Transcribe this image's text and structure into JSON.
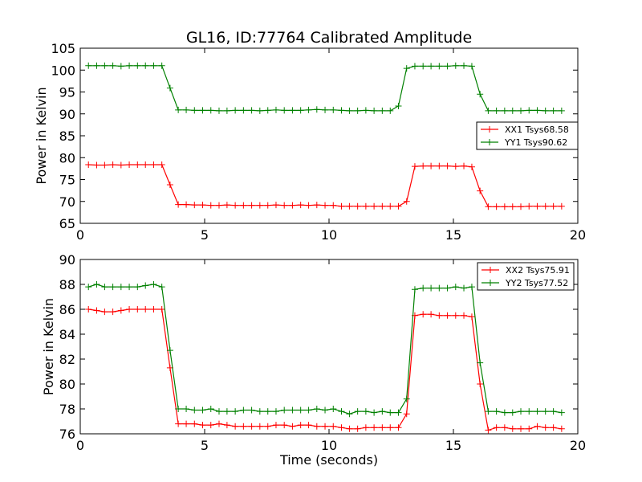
{
  "title": "GL16, ID:77764 Calibrated Amplitude",
  "colors": {
    "xx": "#ff0000",
    "yy": "#008000"
  },
  "chart_data": [
    {
      "type": "line",
      "ylabel": "Power in Kelvin",
      "xlabel": "",
      "xlim": [
        0,
        20
      ],
      "ylim": [
        65,
        105
      ],
      "xticks": [
        "0",
        "5",
        "10",
        "15",
        "20"
      ],
      "yticks": [
        "65",
        "70",
        "75",
        "80",
        "85",
        "90",
        "95",
        "100",
        "105"
      ],
      "legend_position": "center-right",
      "x": [
        0.33,
        0.66,
        0.98,
        1.31,
        1.64,
        1.97,
        2.3,
        2.62,
        2.95,
        3.28,
        3.61,
        3.94,
        4.26,
        4.59,
        4.92,
        5.25,
        5.58,
        5.9,
        6.23,
        6.56,
        6.89,
        7.22,
        7.54,
        7.87,
        8.2,
        8.53,
        8.86,
        9.18,
        9.51,
        9.84,
        10.17,
        10.5,
        10.82,
        11.15,
        11.48,
        11.81,
        12.14,
        12.46,
        12.79,
        13.12,
        13.45,
        13.78,
        14.1,
        14.43,
        14.76,
        15.09,
        15.42,
        15.74,
        16.07,
        16.4,
        16.73,
        17.06,
        17.38,
        17.71,
        18.04,
        18.37,
        18.7,
        19.02,
        19.35
      ],
      "series": [
        {
          "name": "XX1 Tsys68.58",
          "color": "#ff0000",
          "values": [
            78.4,
            78.3,
            78.3,
            78.4,
            78.3,
            78.4,
            78.4,
            78.4,
            78.4,
            78.4,
            73.8,
            69.3,
            69.3,
            69.2,
            69.2,
            69.1,
            69.1,
            69.2,
            69.1,
            69.1,
            69.1,
            69.1,
            69.1,
            69.2,
            69.1,
            69.1,
            69.2,
            69.1,
            69.2,
            69.1,
            69.1,
            68.9,
            68.9,
            68.9,
            68.9,
            68.9,
            68.9,
            68.9,
            68.9,
            70.0,
            78.0,
            78.1,
            78.1,
            78.1,
            78.1,
            78.0,
            78.1,
            77.9,
            72.4,
            68.8,
            68.8,
            68.8,
            68.8,
            68.8,
            68.9,
            68.9,
            68.9,
            68.9,
            68.9
          ]
        },
        {
          "name": "YY1 Tsys90.62",
          "color": "#008000",
          "values": [
            101.0,
            101.0,
            101.0,
            101.0,
            100.9,
            101.0,
            101.0,
            101.0,
            101.0,
            101.0,
            95.9,
            90.9,
            90.9,
            90.8,
            90.8,
            90.8,
            90.7,
            90.7,
            90.8,
            90.8,
            90.8,
            90.7,
            90.8,
            90.9,
            90.8,
            90.8,
            90.8,
            90.9,
            91.0,
            90.9,
            90.9,
            90.8,
            90.7,
            90.7,
            90.8,
            90.7,
            90.7,
            90.7,
            91.8,
            100.4,
            100.9,
            100.9,
            100.9,
            100.9,
            100.9,
            101.0,
            101.0,
            100.9,
            94.5,
            90.7,
            90.7,
            90.7,
            90.7,
            90.7,
            90.8,
            90.8,
            90.7,
            90.7,
            90.7
          ]
        }
      ]
    },
    {
      "type": "line",
      "ylabel": "Power in Kelvin",
      "xlabel": "Time (seconds)",
      "xlim": [
        0,
        20
      ],
      "ylim": [
        76,
        90
      ],
      "xticks": [
        "0",
        "5",
        "10",
        "15",
        "20"
      ],
      "yticks": [
        "76",
        "78",
        "80",
        "82",
        "84",
        "86",
        "88",
        "90"
      ],
      "legend_position": "top-right",
      "x": [
        0.33,
        0.66,
        0.98,
        1.31,
        1.64,
        1.97,
        2.3,
        2.62,
        2.95,
        3.28,
        3.61,
        3.94,
        4.26,
        4.59,
        4.92,
        5.25,
        5.58,
        5.9,
        6.23,
        6.56,
        6.89,
        7.22,
        7.54,
        7.87,
        8.2,
        8.53,
        8.86,
        9.18,
        9.51,
        9.84,
        10.17,
        10.5,
        10.82,
        11.15,
        11.48,
        11.81,
        12.14,
        12.46,
        12.79,
        13.12,
        13.45,
        13.78,
        14.1,
        14.43,
        14.76,
        15.09,
        15.42,
        15.74,
        16.07,
        16.4,
        16.73,
        17.06,
        17.38,
        17.71,
        18.04,
        18.37,
        18.7,
        19.02,
        19.35
      ],
      "series": [
        {
          "name": "XX2 Tsys75.91",
          "color": "#ff0000",
          "values": [
            86.0,
            85.9,
            85.8,
            85.8,
            85.9,
            86.0,
            86.0,
            86.0,
            86.0,
            86.0,
            81.3,
            76.8,
            76.8,
            76.8,
            76.7,
            76.7,
            76.8,
            76.7,
            76.6,
            76.6,
            76.6,
            76.6,
            76.6,
            76.7,
            76.7,
            76.6,
            76.7,
            76.7,
            76.6,
            76.6,
            76.6,
            76.5,
            76.4,
            76.4,
            76.5,
            76.5,
            76.5,
            76.5,
            76.5,
            77.6,
            85.5,
            85.6,
            85.6,
            85.5,
            85.5,
            85.5,
            85.5,
            85.4,
            80.0,
            76.3,
            76.5,
            76.5,
            76.4,
            76.4,
            76.4,
            76.6,
            76.5,
            76.5,
            76.4
          ]
        },
        {
          "name": "YY2 Tsys77.52",
          "color": "#008000",
          "values": [
            87.8,
            88.0,
            87.8,
            87.8,
            87.8,
            87.8,
            87.8,
            87.9,
            88.0,
            87.8,
            82.7,
            78.0,
            78.0,
            77.9,
            77.9,
            78.0,
            77.8,
            77.8,
            77.8,
            77.9,
            77.9,
            77.8,
            77.8,
            77.8,
            77.9,
            77.9,
            77.9,
            77.9,
            78.0,
            77.9,
            78.0,
            77.8,
            77.6,
            77.8,
            77.8,
            77.7,
            77.8,
            77.7,
            77.7,
            78.8,
            87.6,
            87.7,
            87.7,
            87.7,
            87.7,
            87.8,
            87.7,
            87.8,
            81.7,
            77.8,
            77.8,
            77.7,
            77.7,
            77.8,
            77.8,
            77.8,
            77.8,
            77.8,
            77.7
          ]
        }
      ]
    }
  ]
}
